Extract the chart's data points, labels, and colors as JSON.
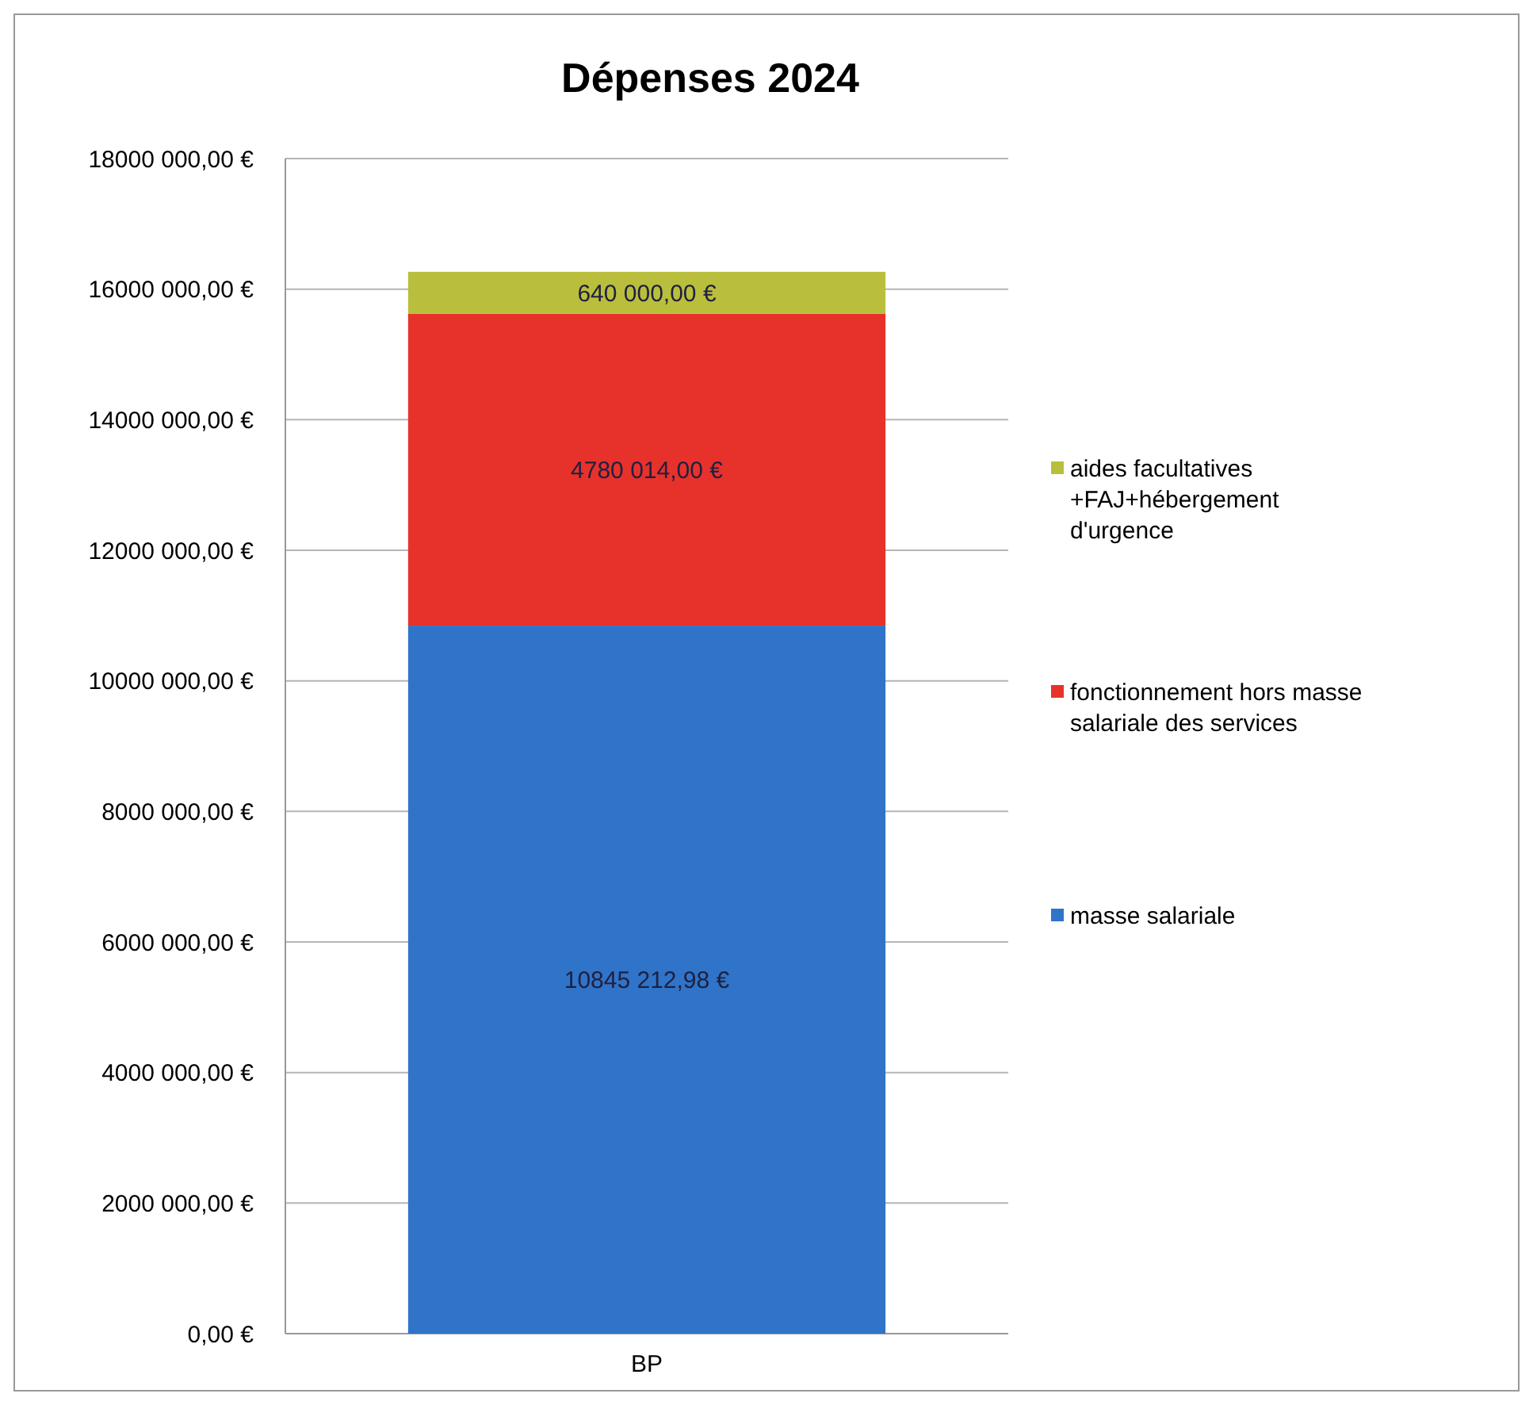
{
  "chart_data": {
    "type": "bar",
    "title": "Dépenses 2024",
    "categories": [
      "BP"
    ],
    "stacked": true,
    "series": [
      {
        "name": "masse salariale",
        "color": "#2f74c8",
        "values": [
          10845212.98
        ],
        "value_labels": [
          "10845 212,98 €"
        ]
      },
      {
        "name": "fonctionnement hors masse salariale des services",
        "color": "#e7322b",
        "values": [
          4780014
        ],
        "value_labels": [
          "4780 014,00 €"
        ]
      },
      {
        "name": "aides facultatives +FAJ+hébergement d'urgence",
        "color": "#b9bf3c",
        "values": [
          640000
        ],
        "value_labels": [
          "640 000,00 €"
        ]
      }
    ],
    "ylim": [
      0,
      18000000
    ],
    "yticks": [
      {
        "value": 0,
        "label": "0,00 €"
      },
      {
        "value": 2000000,
        "label": "2000 000,00 €"
      },
      {
        "value": 4000000,
        "label": "4000 000,00 €"
      },
      {
        "value": 6000000,
        "label": "6000 000,00 €"
      },
      {
        "value": 8000000,
        "label": "8000 000,00 €"
      },
      {
        "value": 10000000,
        "label": "10000 000,00 €"
      },
      {
        "value": 12000000,
        "label": "12000 000,00 €"
      },
      {
        "value": 14000000,
        "label": "14000 000,00 €"
      },
      {
        "value": 16000000,
        "label": "16000 000,00 €"
      },
      {
        "value": 18000000,
        "label": "18000 000,00 €"
      }
    ],
    "grid": "y",
    "legend": "right"
  }
}
